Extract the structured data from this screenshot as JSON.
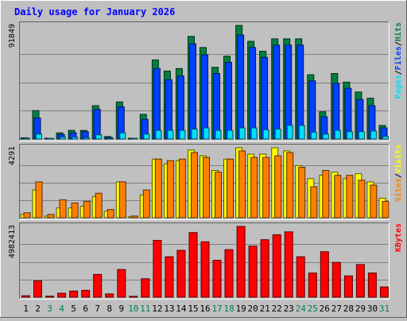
{
  "title": "Daily usage for January 2026",
  "colors": {
    "hits": "#008040",
    "files": "#0040ff",
    "pages": "#00e0ff",
    "visits": "#ffff00",
    "sites": "#ff8000",
    "kbytes": "#ff0000",
    "weekend_day": "#00805c",
    "weekday": "#000000",
    "title": "#0000ff",
    "panel_bg": "#c0c0c0",
    "grid": "#808080"
  },
  "chart_data": [
    {
      "type": "bar",
      "panel": "hits-files-pages",
      "axis_max_label": "91849",
      "ylim": [
        0,
        91849
      ],
      "legend": [
        {
          "name": "Pages",
          "color": "#00e0ff"
        },
        {
          "name": "/",
          "color": "#000000"
        },
        {
          "name": "Files",
          "color": "#0040ff"
        },
        {
          "name": "/",
          "color": "#000000"
        },
        {
          "name": "Hits",
          "color": "#008040"
        }
      ],
      "categories": [
        "1",
        "2",
        "3",
        "4",
        "5",
        "6",
        "7",
        "8",
        "9",
        "10",
        "11",
        "12",
        "13",
        "14",
        "15",
        "16",
        "17",
        "18",
        "19",
        "20",
        "21",
        "22",
        "23",
        "24",
        "25",
        "26",
        "27",
        "28",
        "29",
        "30",
        "31"
      ],
      "series": [
        {
          "name": "Hits",
          "values": [
            1000,
            23000,
            600,
            5000,
            7000,
            7000,
            27000,
            2000,
            30000,
            600,
            20000,
            64000,
            55000,
            57000,
            83000,
            74000,
            58000,
            67000,
            91849,
            79000,
            71000,
            81000,
            81000,
            81000,
            52000,
            22000,
            53000,
            46000,
            38000,
            33000,
            11000
          ]
        },
        {
          "name": "Files",
          "values": [
            800,
            17000,
            400,
            3800,
            5000,
            6000,
            24000,
            1400,
            26000,
            400,
            16000,
            57000,
            48000,
            51000,
            77000,
            68000,
            53000,
            62000,
            84000,
            74000,
            66000,
            76000,
            76000,
            76000,
            47000,
            18000,
            45000,
            41000,
            32000,
            27000,
            9000
          ]
        },
        {
          "name": "Pages",
          "values": [
            400,
            4000,
            100,
            1500,
            1500,
            1000,
            3400,
            400,
            5000,
            100,
            4000,
            7000,
            7000,
            7000,
            8000,
            9000,
            7000,
            7000,
            9000,
            9000,
            7500,
            8000,
            11000,
            11000,
            5500,
            4000,
            7000,
            6000,
            6000,
            6500,
            2000
          ]
        }
      ]
    },
    {
      "type": "bar",
      "panel": "visits-sites",
      "axis_max_label": "4291",
      "ylim": [
        0,
        4291
      ],
      "legend": [
        {
          "name": "Sites",
          "color": "#ff8000"
        },
        {
          "name": "/",
          "color": "#000000"
        },
        {
          "name": "Visits",
          "color": "#ffff00"
        }
      ],
      "categories": [
        "1",
        "2",
        "3",
        "4",
        "5",
        "6",
        "7",
        "8",
        "9",
        "10",
        "11",
        "12",
        "13",
        "14",
        "15",
        "16",
        "17",
        "18",
        "19",
        "20",
        "21",
        "22",
        "23",
        "24",
        "25",
        "26",
        "27",
        "28",
        "29",
        "30",
        "31"
      ],
      "series": [
        {
          "name": "Visits",
          "values": [
            200,
            1700,
            100,
            600,
            600,
            700,
            1300,
            400,
            2200,
            60,
            1400,
            3600,
            3300,
            3500,
            4150,
            3800,
            2900,
            3600,
            4291,
            3900,
            3900,
            4291,
            4100,
            3200,
            2400,
            2600,
            2800,
            2400,
            2700,
            2200,
            1200
          ]
        },
        {
          "name": "Sites",
          "values": [
            300,
            2200,
            200,
            1100,
            900,
            1000,
            1500,
            500,
            2200,
            100,
            1700,
            3600,
            3500,
            3600,
            4000,
            3700,
            2800,
            3600,
            4100,
            3700,
            3700,
            3800,
            4000,
            3100,
            1900,
            2900,
            2600,
            2600,
            2300,
            2000,
            1000
          ]
        }
      ]
    },
    {
      "type": "bar",
      "panel": "kbytes",
      "axis_max_label": "4982413",
      "ylim": [
        0,
        4982413
      ],
      "legend": [
        {
          "name": "KBytes",
          "color": "#ff0000"
        }
      ],
      "categories": [
        "1",
        "2",
        "3",
        "4",
        "5",
        "6",
        "7",
        "8",
        "9",
        "10",
        "11",
        "12",
        "13",
        "14",
        "15",
        "16",
        "17",
        "18",
        "19",
        "20",
        "21",
        "22",
        "23",
        "24",
        "25",
        "26",
        "27",
        "28",
        "29",
        "30",
        "31"
      ],
      "series": [
        {
          "name": "KBytes",
          "values": [
            100000,
            1150000,
            70000,
            280000,
            430000,
            480000,
            1600000,
            230000,
            1950000,
            60000,
            1300000,
            4000000,
            2850000,
            3300000,
            4550000,
            3900000,
            2600000,
            3350000,
            4982413,
            3600000,
            4050000,
            4400000,
            4600000,
            2850000,
            1700000,
            3200000,
            2450000,
            1500000,
            2300000,
            1700000,
            720000
          ]
        }
      ]
    }
  ],
  "x_labels": [
    {
      "label": "1",
      "weekend": false
    },
    {
      "label": "2",
      "weekend": false
    },
    {
      "label": "3",
      "weekend": true
    },
    {
      "label": "4",
      "weekend": true
    },
    {
      "label": "5",
      "weekend": false
    },
    {
      "label": "6",
      "weekend": false
    },
    {
      "label": "7",
      "weekend": false
    },
    {
      "label": "8",
      "weekend": false
    },
    {
      "label": "9",
      "weekend": false
    },
    {
      "label": "10",
      "weekend": true
    },
    {
      "label": "11",
      "weekend": true
    },
    {
      "label": "12",
      "weekend": false
    },
    {
      "label": "13",
      "weekend": false
    },
    {
      "label": "14",
      "weekend": false
    },
    {
      "label": "15",
      "weekend": false
    },
    {
      "label": "16",
      "weekend": false
    },
    {
      "label": "17",
      "weekend": true
    },
    {
      "label": "18",
      "weekend": true
    },
    {
      "label": "19",
      "weekend": false
    },
    {
      "label": "20",
      "weekend": false
    },
    {
      "label": "21",
      "weekend": false
    },
    {
      "label": "22",
      "weekend": false
    },
    {
      "label": "23",
      "weekend": false
    },
    {
      "label": "24",
      "weekend": true
    },
    {
      "label": "25",
      "weekend": true
    },
    {
      "label": "26",
      "weekend": false
    },
    {
      "label": "27",
      "weekend": false
    },
    {
      "label": "28",
      "weekend": false
    },
    {
      "label": "29",
      "weekend": false
    },
    {
      "label": "30",
      "weekend": false
    },
    {
      "label": "31",
      "weekend": true
    }
  ]
}
